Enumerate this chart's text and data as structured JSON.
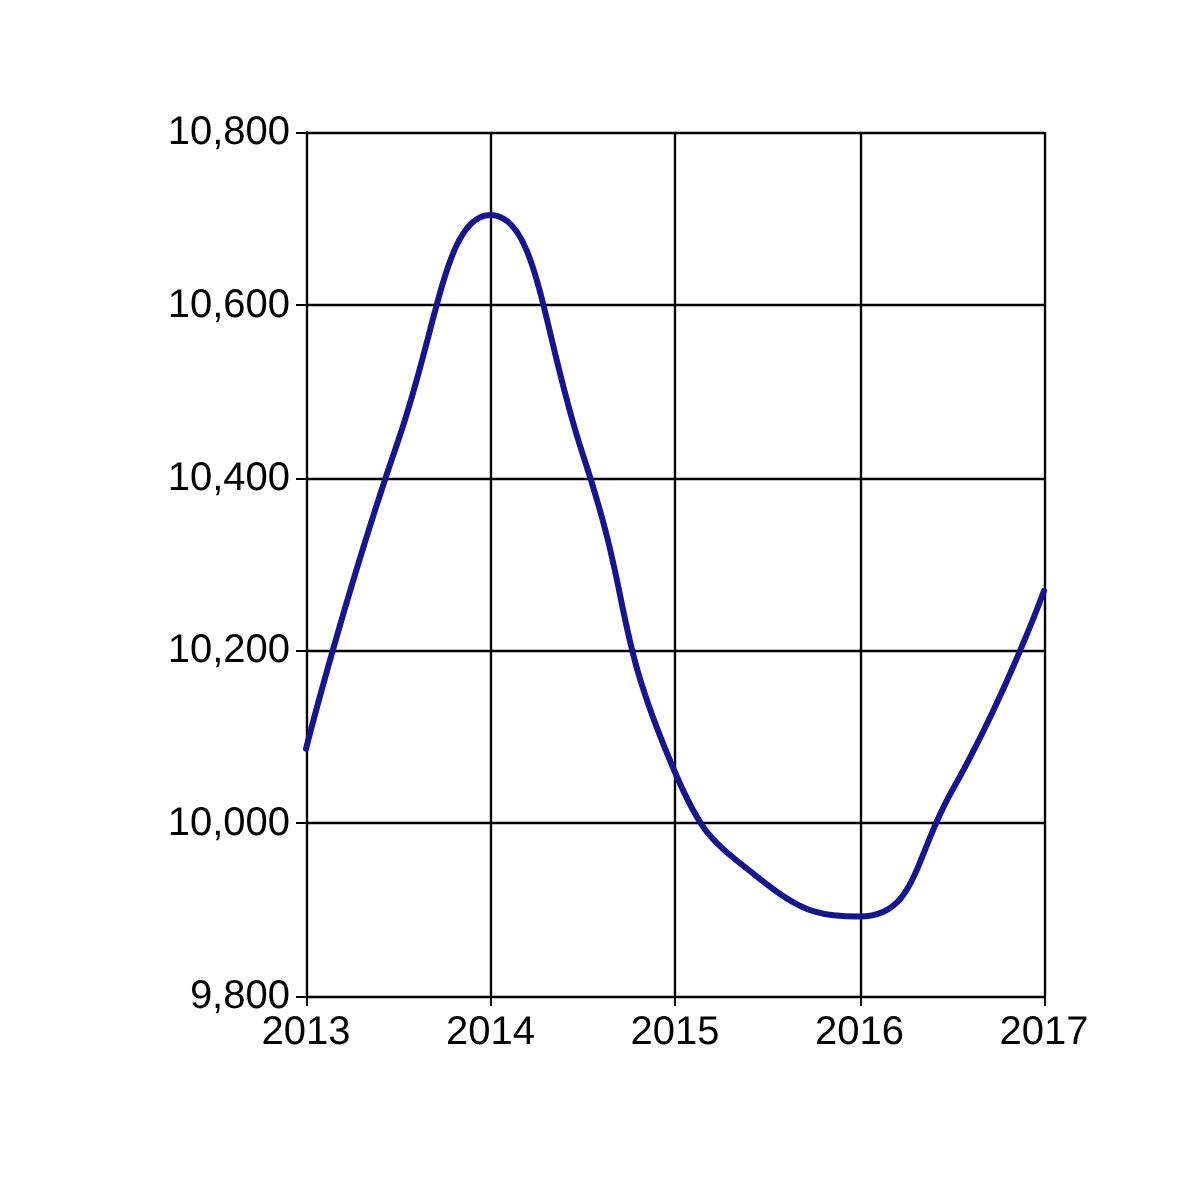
{
  "chart_data": {
    "type": "line",
    "x": [
      2013,
      2013.5,
      2014,
      2014.5,
      2015,
      2015.5,
      2016,
      2016.5,
      2017
    ],
    "series": [
      {
        "color": "#15158c",
        "values": [
          10086,
          10443,
          10704,
          10427,
          10059,
          9929,
          9892,
          10037,
          10269
        ]
      }
    ],
    "xlim": [
      2013,
      2017
    ],
    "xticks": [
      2013,
      2014,
      2015,
      2016,
      2017
    ],
    "ylim": [
      9800,
      10800
    ],
    "yticks": [
      {
        "value": 9800,
        "label": "9,800"
      },
      {
        "value": 10000,
        "label": "10,000"
      },
      {
        "value": 10200,
        "label": "10,200"
      },
      {
        "value": 10400,
        "label": "10,400"
      },
      {
        "value": 10600,
        "label": "10,600"
      },
      {
        "value": 10800,
        "label": "10,800"
      }
    ],
    "grid": true,
    "marker": "none",
    "line_style": "solid"
  }
}
